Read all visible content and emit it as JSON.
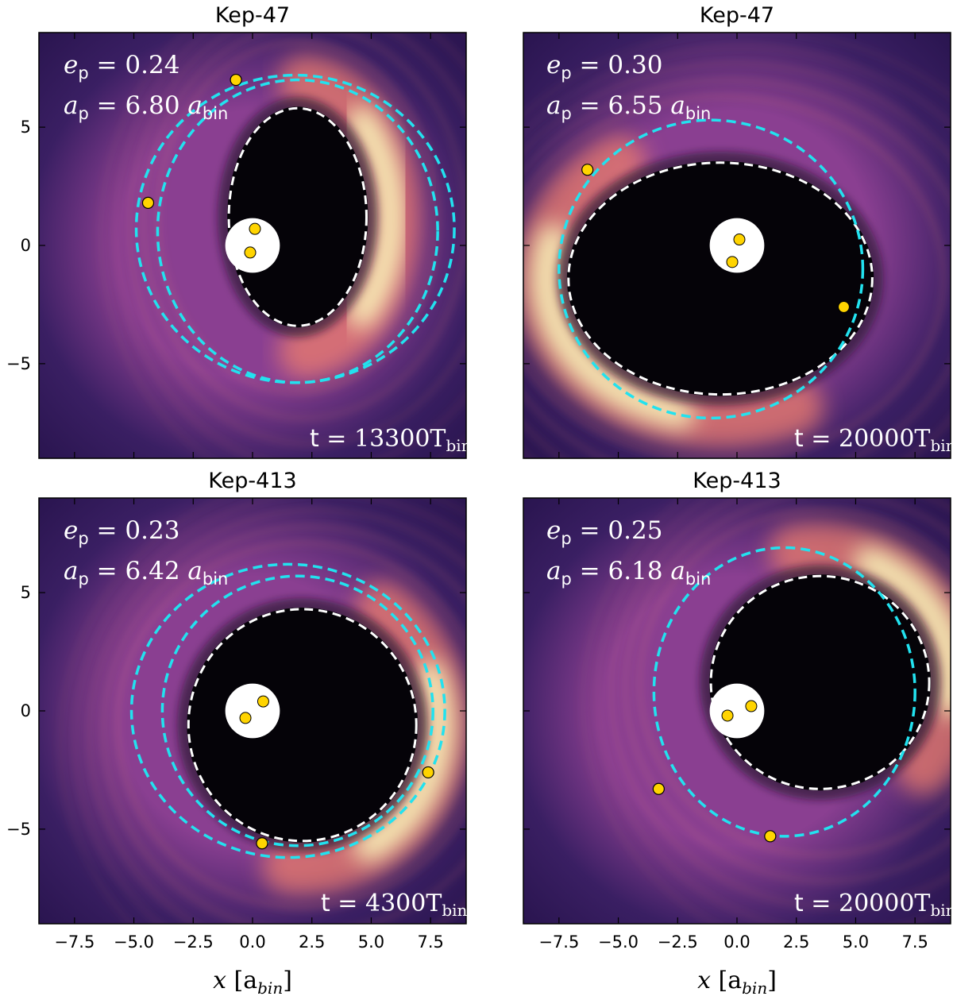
{
  "figure": {
    "colors": {
      "background": "#ffffff",
      "cavity": "#050308",
      "disk_outer": "#3a1f63",
      "disk_mid": "#8a3f91",
      "disk_bright": "#ee7d6c",
      "disk_peak": "#fcfbbd",
      "planet_orbit": "#22e2ef",
      "cavity_fit": "#ffffff",
      "star": "#ffd400",
      "star_edge": "#000000",
      "binary_region": "#ffffff",
      "frame": "#000000"
    },
    "x_axis_label": "x",
    "x_axis_unit": "[a",
    "x_axis_unit_sub": "bin",
    "x_axis_unit_close": "]",
    "annotation_e": "e",
    "annotation_a": "a",
    "annotation_sub_p": "p",
    "annotation_sub_bin": "bin",
    "time_prefix": "t",
    "time_T": "T",
    "time_sub": "bin"
  },
  "chart_data": [
    {
      "type": "heatmap",
      "title": "Kep-47",
      "xlim": [
        -9,
        9
      ],
      "ylim": [
        -9,
        9
      ],
      "xticks": [
        -7.5,
        -5.0,
        -2.5,
        0.0,
        2.5,
        5.0,
        7.5
      ],
      "xtick_labels": [
        "−7.5",
        "−5.0",
        "−2.5",
        "0.0",
        "2.5",
        "5.0",
        "7.5"
      ],
      "yticks": [
        -5,
        0,
        5
      ],
      "ytick_labels": [
        "−5",
        "0",
        "5"
      ],
      "show_x_labels": false,
      "show_y_labels": true,
      "e_p": "0.24",
      "a_p": "6.80",
      "time": "13300",
      "cavity": {
        "cx": 1.9,
        "cy": 1.2,
        "rx": 2.9,
        "ry": 4.6,
        "angle": 0
      },
      "planet_orbits": [
        {
          "cx": 1.8,
          "cy": 0.7,
          "rx": 6.7,
          "ry": 6.5,
          "angle": 0
        },
        {
          "cx": 1.9,
          "cy": 0.6,
          "rx": 5.9,
          "ry": 6.4,
          "angle": 0
        }
      ],
      "planets": [
        [
          -0.7,
          7.0
        ],
        [
          -4.4,
          1.8
        ]
      ],
      "binary_stars": [
        [
          0.1,
          0.7
        ],
        [
          -0.1,
          -0.3
        ]
      ],
      "bright_arc": {
        "center_deg": 0,
        "width_deg": 85
      }
    },
    {
      "type": "heatmap",
      "title": "Kep-47",
      "xlim": [
        -9,
        9
      ],
      "ylim": [
        -9,
        9
      ],
      "xticks": [
        -7.5,
        -5.0,
        -2.5,
        0.0,
        2.5,
        5.0,
        7.5
      ],
      "xtick_labels": [
        "−7.5",
        "−5.0",
        "−2.5",
        "0.0",
        "2.5",
        "5.0",
        "7.5"
      ],
      "yticks": [
        -5,
        0,
        5
      ],
      "ytick_labels": [
        "−5",
        "0",
        "5"
      ],
      "show_x_labels": false,
      "show_y_labels": false,
      "e_p": "0.30",
      "a_p": "6.55",
      "time": "20000",
      "cavity": {
        "cx": -0.7,
        "cy": -1.4,
        "rx": 6.4,
        "ry": 4.9,
        "angle": 0
      },
      "planet_orbits": [
        {
          "cx": -1.1,
          "cy": -1.0,
          "rx": 6.4,
          "ry": 6.3,
          "angle": 0
        }
      ],
      "planets": [
        [
          -6.3,
          3.2
        ],
        [
          4.5,
          -2.6
        ]
      ],
      "binary_stars": [
        [
          0.1,
          0.25
        ],
        [
          -0.2,
          -0.7
        ]
      ],
      "bright_arc": {
        "center_deg": 210,
        "width_deg": 85
      }
    },
    {
      "type": "heatmap",
      "title": "Kep-413",
      "xlim": [
        -9,
        9
      ],
      "ylim": [
        -9,
        9
      ],
      "xticks": [
        -7.5,
        -5.0,
        -2.5,
        0.0,
        2.5,
        5.0,
        7.5
      ],
      "xtick_labels": [
        "−7.5",
        "−5.0",
        "−2.5",
        "0.0",
        "2.5",
        "5.0",
        "7.5"
      ],
      "yticks": [
        -5,
        0,
        5
      ],
      "ytick_labels": [
        "−5",
        "0",
        "5"
      ],
      "show_x_labels": true,
      "show_y_labels": true,
      "e_p": "0.23",
      "a_p": "6.42",
      "time": "4300",
      "cavity": {
        "cx": 2.1,
        "cy": -0.6,
        "rx": 4.8,
        "ry": 4.9,
        "angle": 0
      },
      "planet_orbits": [
        {
          "cx": 1.5,
          "cy": 0.0,
          "rx": 6.6,
          "ry": 6.2,
          "angle": 0
        },
        {
          "cx": 1.9,
          "cy": 0.0,
          "rx": 5.7,
          "ry": 5.7,
          "angle": 0
        }
      ],
      "planets": [
        [
          7.4,
          -2.6
        ],
        [
          0.4,
          -5.6
        ]
      ],
      "binary_stars": [
        [
          0.45,
          0.4
        ],
        [
          -0.3,
          -0.3
        ]
      ],
      "bright_arc": {
        "center_deg": 340,
        "width_deg": 75
      }
    },
    {
      "type": "heatmap",
      "title": "Kep-413",
      "xlim": [
        -9,
        9
      ],
      "ylim": [
        -9,
        9
      ],
      "xticks": [
        -7.5,
        -5.0,
        -2.5,
        0.0,
        2.5,
        5.0,
        7.5
      ],
      "xtick_labels": [
        "−7.5",
        "−5.0",
        "−2.5",
        "0.0",
        "2.5",
        "5.0",
        "7.5"
      ],
      "yticks": [
        -5,
        0,
        5
      ],
      "ytick_labels": [
        "−5",
        "0",
        "5"
      ],
      "show_x_labels": true,
      "show_y_labels": false,
      "e_p": "0.25",
      "a_p": "6.18",
      "time": "20000",
      "cavity": {
        "cx": 3.5,
        "cy": 1.2,
        "rx": 4.6,
        "ry": 4.5,
        "angle": 0
      },
      "planet_orbits": [
        {
          "cx": 2.0,
          "cy": 0.8,
          "rx": 5.5,
          "ry": 6.1,
          "angle": 0
        }
      ],
      "planets": [
        [
          -3.3,
          -3.3
        ],
        [
          1.4,
          -5.3
        ]
      ],
      "binary_stars": [
        [
          0.6,
          0.2
        ],
        [
          -0.4,
          -0.2
        ]
      ],
      "bright_arc": {
        "center_deg": 30,
        "width_deg": 70
      }
    }
  ]
}
